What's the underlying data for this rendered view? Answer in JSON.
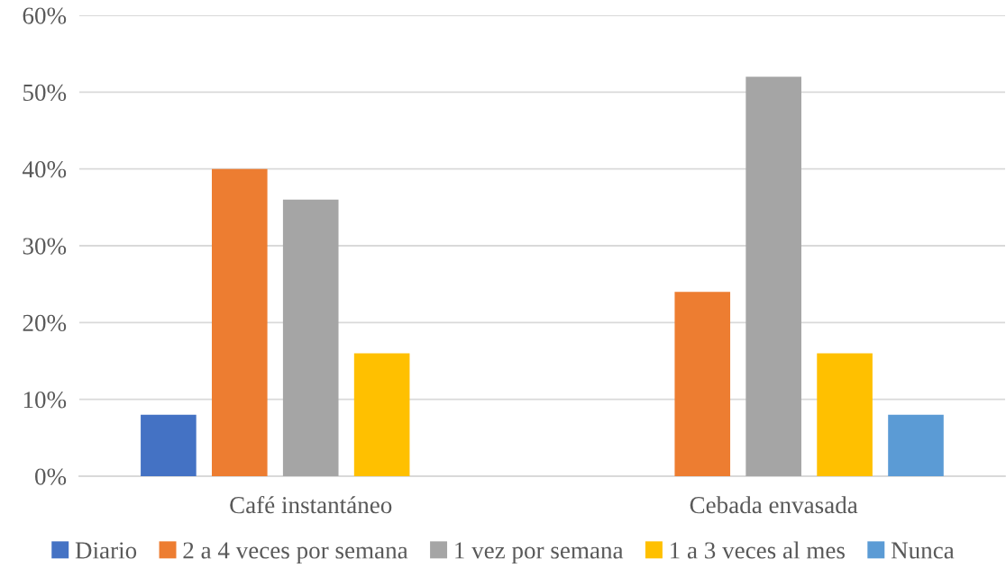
{
  "chart_data": {
    "type": "bar",
    "categories": [
      "Café instantáneo",
      "Cebada envasada"
    ],
    "series": [
      {
        "name": "Diario",
        "color": "#4472c4",
        "values": [
          8,
          null
        ]
      },
      {
        "name": "2 a 4 veces por semana",
        "color": "#ed7d31",
        "values": [
          40,
          24
        ]
      },
      {
        "name": "1 vez por semana",
        "color": "#a5a5a5",
        "values": [
          36,
          52
        ]
      },
      {
        "name": "1 a 3 veces al mes",
        "color": "#ffc000",
        "values": [
          16,
          16
        ]
      },
      {
        "name": "Nunca",
        "color": "#5b9bd5",
        "values": [
          null,
          8
        ]
      }
    ],
    "ylim": [
      0,
      60
    ],
    "yticks": [
      {
        "value": 0,
        "label": "0%"
      },
      {
        "value": 10,
        "label": "10%"
      },
      {
        "value": 20,
        "label": "20%"
      },
      {
        "value": 30,
        "label": "30%"
      },
      {
        "value": 40,
        "label": "40%"
      },
      {
        "value": 50,
        "label": "50%"
      },
      {
        "value": 60,
        "label": "60%"
      }
    ],
    "grid": "y",
    "legend": "bottom"
  }
}
